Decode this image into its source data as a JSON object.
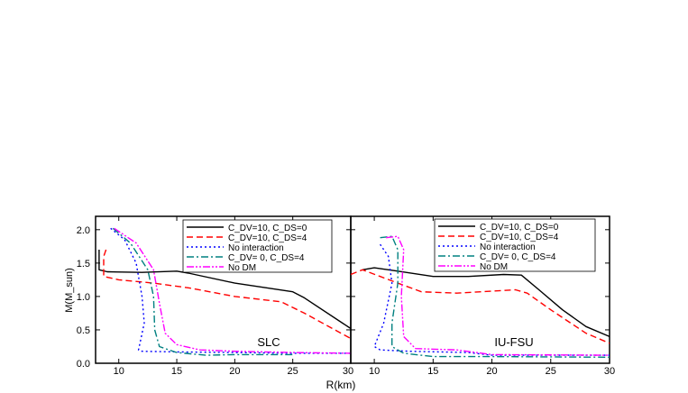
{
  "chart_data": [
    {
      "type": "line",
      "annotation": "SLC",
      "xlabel": "R(km)",
      "ylabel": "M(M_sun)",
      "xlim": [
        8,
        30
      ],
      "ylim": [
        0,
        2.2
      ],
      "xticks": [
        "10",
        "15",
        "20",
        "25",
        "30"
      ],
      "yticks": [
        "0.0",
        "0.5",
        "1.0",
        "1.5",
        "2.0"
      ],
      "legend_position": "top-right",
      "series": [
        {
          "name": "C_DV=10, C_DS=0",
          "color": "#000000",
          "dash": "solid",
          "points": [
            [
              8.3,
              1.7
            ],
            [
              8.3,
              1.4
            ],
            [
              9,
              1.37
            ],
            [
              12,
              1.36
            ],
            [
              15,
              1.38
            ],
            [
              16,
              1.35
            ],
            [
              20,
              1.2
            ],
            [
              25,
              1.07
            ],
            [
              26,
              0.98
            ],
            [
              30,
              0.52
            ]
          ]
        },
        {
          "name": "C_DV=10, C_DS=4",
          "color": "#ff0000",
          "dash": "dashed",
          "points": [
            [
              8.9,
              1.7
            ],
            [
              8.7,
              1.6
            ],
            [
              8.7,
              1.3
            ],
            [
              10,
              1.25
            ],
            [
              13,
              1.2
            ],
            [
              16,
              1.13
            ],
            [
              20,
              1.0
            ],
            [
              24,
              0.92
            ],
            [
              26,
              0.75
            ],
            [
              30,
              0.37
            ]
          ]
        },
        {
          "name": "No interaction",
          "color": "#0000ff",
          "dash": "dotted",
          "points": [
            [
              9.3,
              2.02
            ],
            [
              10.5,
              1.85
            ],
            [
              11.5,
              1.5
            ],
            [
              12,
              1.0
            ],
            [
              12.2,
              0.6
            ],
            [
              11.7,
              0.2
            ],
            [
              12,
              0.18
            ],
            [
              15,
              0.17
            ],
            [
              20,
              0.16
            ],
            [
              25,
              0.15
            ],
            [
              30,
              0.15
            ]
          ]
        },
        {
          "name": "C_DV= 0, C_DS=4",
          "color": "#008080",
          "dash": "dashdot",
          "points": [
            [
              9.5,
              2.02
            ],
            [
              11,
              1.8
            ],
            [
              12.5,
              1.4
            ],
            [
              13,
              1.0
            ],
            [
              13.1,
              0.5
            ],
            [
              13.5,
              0.25
            ],
            [
              15,
              0.16
            ],
            [
              17.5,
              0.12
            ],
            [
              20,
              0.13
            ],
            [
              25,
              0.13
            ]
          ]
        },
        {
          "name": "No DM",
          "color": "#ff00ff",
          "dash": "dashdotdot",
          "points": [
            [
              9.6,
              2.02
            ],
            [
              11.5,
              1.8
            ],
            [
              13,
              1.4
            ],
            [
              13.5,
              0.9
            ],
            [
              14,
              0.45
            ],
            [
              15,
              0.28
            ],
            [
              17,
              0.2
            ],
            [
              20,
              0.18
            ],
            [
              25,
              0.16
            ],
            [
              30,
              0.15
            ]
          ]
        }
      ]
    },
    {
      "type": "line",
      "annotation": "IU-FSU",
      "xlim": [
        8,
        30
      ],
      "ylim": [
        0,
        2.2
      ],
      "xticks": [
        "10",
        "15",
        "20",
        "25",
        "30"
      ],
      "legend_position": "top-right",
      "series": [
        {
          "name": "C_DV=10,   C_DS=0",
          "color": "#000000",
          "dash": "solid",
          "points": [
            [
              9,
              1.4
            ],
            [
              10,
              1.43
            ],
            [
              12,
              1.38
            ],
            [
              15,
              1.3
            ],
            [
              18,
              1.3
            ],
            [
              21,
              1.33
            ],
            [
              22.5,
              1.32
            ],
            [
              24,
              1.1
            ],
            [
              26,
              0.8
            ],
            [
              28,
              0.55
            ],
            [
              30,
              0.4
            ]
          ]
        },
        {
          "name": "C_DV=10,   C_DS=4",
          "color": "#ff0000",
          "dash": "dashed",
          "points": [
            [
              8,
              1.33
            ],
            [
              9,
              1.4
            ],
            [
              10.5,
              1.3
            ],
            [
              12,
              1.2
            ],
            [
              14,
              1.07
            ],
            [
              17,
              1.05
            ],
            [
              20,
              1.08
            ],
            [
              22,
              1.1
            ],
            [
              23,
              1.05
            ],
            [
              25,
              0.8
            ],
            [
              28,
              0.45
            ],
            [
              30,
              0.3
            ]
          ]
        },
        {
          "name": "No interaction",
          "color": "#0000ff",
          "dash": "dotted",
          "points": [
            [
              10.5,
              1.78
            ],
            [
              11.2,
              1.6
            ],
            [
              11.5,
              1.2
            ],
            [
              10.8,
              0.6
            ],
            [
              10,
              0.25
            ],
            [
              10.5,
              0.2
            ],
            [
              13,
              0.18
            ],
            [
              18,
              0.16
            ],
            [
              20,
              0.12
            ],
            [
              25,
              0.12
            ],
            [
              30,
              0.12
            ]
          ]
        },
        {
          "name": "C_DV= 0,     C_DS=4",
          "color": "#008080",
          "dash": "dashdot",
          "points": [
            [
              10.5,
              1.88
            ],
            [
              11.5,
              1.9
            ],
            [
              12,
              1.7
            ],
            [
              12,
              1.2
            ],
            [
              11.5,
              0.6
            ],
            [
              11.5,
              0.25
            ],
            [
              12.5,
              0.15
            ],
            [
              15,
              0.1
            ],
            [
              20,
              0.1
            ],
            [
              30,
              0.09
            ]
          ]
        },
        {
          "name": "No DM",
          "color": "#ff00ff",
          "dash": "dashdotdot",
          "points": [
            [
              11,
              1.88
            ],
            [
              12,
              1.9
            ],
            [
              12.5,
              1.7
            ],
            [
              12.3,
              1.0
            ],
            [
              12.5,
              0.4
            ],
            [
              13.5,
              0.22
            ],
            [
              17,
              0.2
            ],
            [
              20,
              0.13
            ],
            [
              30,
              0.12
            ]
          ]
        }
      ]
    }
  ]
}
